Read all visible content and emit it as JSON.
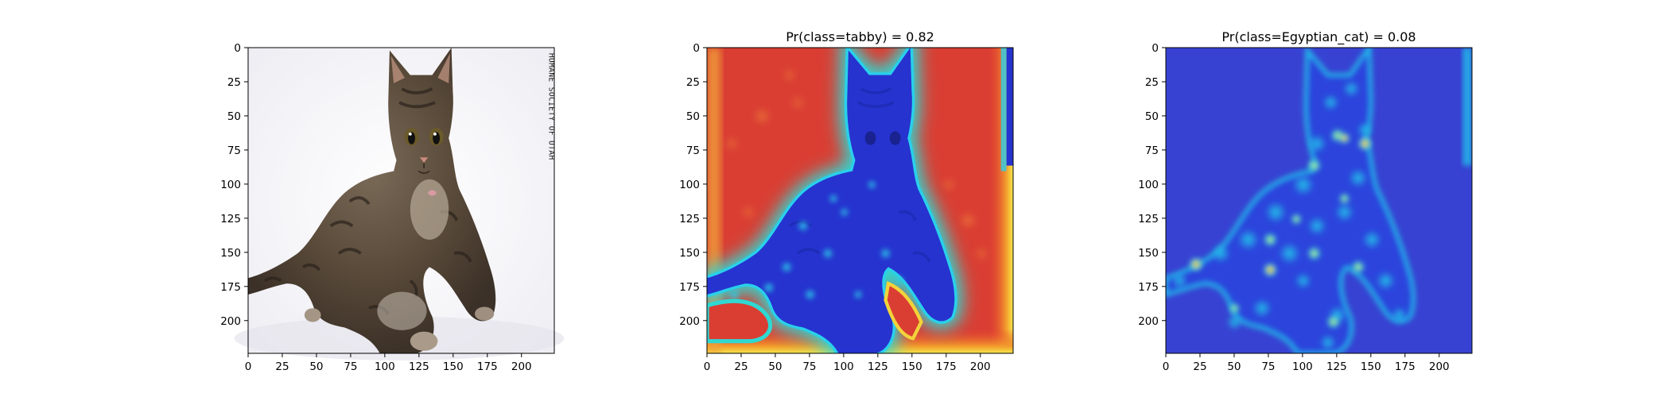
{
  "chart_data": [
    {
      "type": "heatmap",
      "title": "",
      "content": "photo",
      "image_extent": [
        0,
        223
      ],
      "xticks": [
        0,
        25,
        50,
        75,
        100,
        125,
        150,
        175,
        200
      ],
      "yticks": [
        0,
        25,
        50,
        75,
        100,
        125,
        150,
        175,
        200
      ],
      "colors": {
        "background": "#f3f2f7",
        "fur": "#5d4f42"
      }
    },
    {
      "type": "heatmap",
      "title": "Pr(class=tabby) =  0.82",
      "content": "heatmap_high_background",
      "colormap": "jet",
      "image_extent": [
        0,
        223
      ],
      "xticks": [
        0,
        25,
        50,
        75,
        100,
        125,
        150,
        175,
        200
      ],
      "yticks": [
        0,
        25,
        50,
        75,
        100,
        125,
        150,
        175,
        200
      ],
      "colors": {
        "background": "#d93f35",
        "subject": "#2f3bd4"
      }
    },
    {
      "type": "heatmap",
      "title": "Pr(class=Egyptian_cat) =  0.08",
      "content": "heatmap_low_background",
      "colormap": "jet",
      "image_extent": [
        0,
        223
      ],
      "xticks": [
        0,
        25,
        50,
        75,
        100,
        125,
        150,
        175,
        200
      ],
      "yticks": [
        0,
        25,
        50,
        75,
        100,
        125,
        150,
        175,
        200
      ],
      "colors": {
        "background": "#2f3bd4",
        "subject": "#19c8e8"
      }
    }
  ]
}
